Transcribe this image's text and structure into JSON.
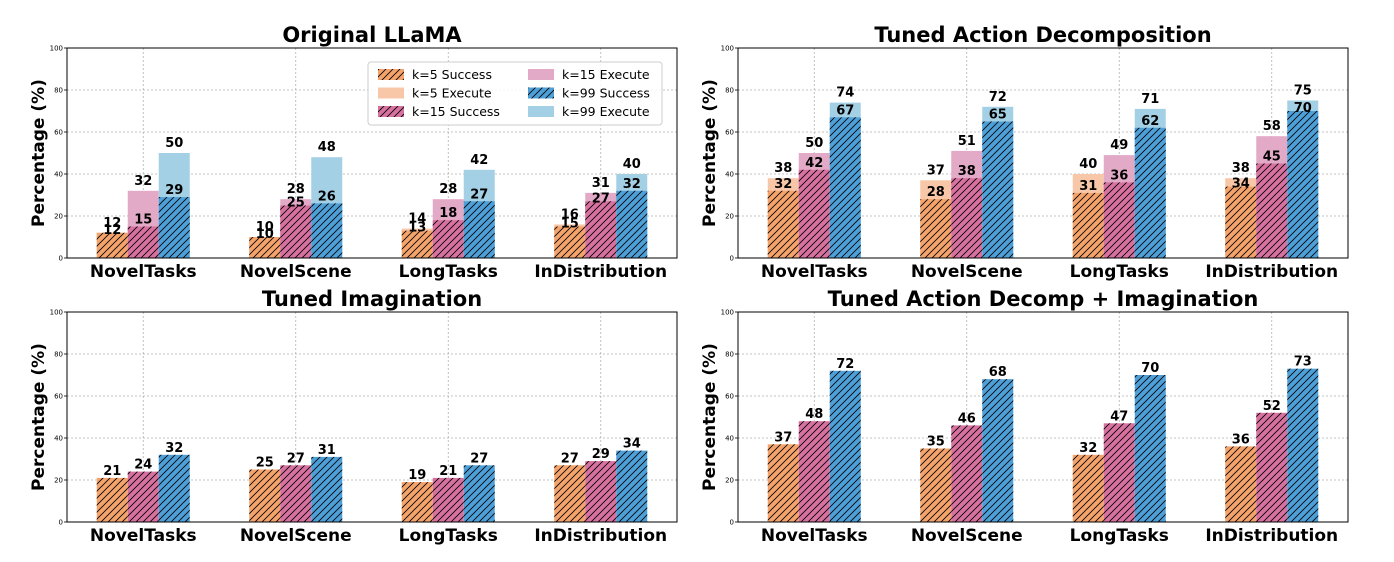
{
  "chart_data": [
    {
      "type": "bar",
      "title": "Original LLaMA",
      "ylabel": "Percentage (%)",
      "ylim": [
        0,
        100
      ],
      "yticks": [
        "0",
        "20",
        "40",
        "60",
        "80",
        "100"
      ],
      "grid": true,
      "legend": "top-right",
      "categories": [
        "NovelTasks",
        "NovelScene",
        "LongTasks",
        "InDistribution"
      ],
      "groups": [
        {
          "name": "k=5",
          "success": [
            12,
            10,
            13,
            15
          ],
          "execute": [
            12,
            10,
            14,
            16
          ]
        },
        {
          "name": "k=15",
          "success": [
            15,
            25,
            18,
            27
          ],
          "execute": [
            32,
            28,
            28,
            31
          ]
        },
        {
          "name": "k=99",
          "success": [
            29,
            26,
            27,
            32
          ],
          "execute": [
            50,
            48,
            42,
            40
          ]
        }
      ]
    },
    {
      "type": "bar",
      "title": "Tuned Action Decomposition",
      "ylabel": "Percentage (%)",
      "ylim": [
        0,
        100
      ],
      "yticks": [
        "0",
        "20",
        "40",
        "60",
        "80",
        "100"
      ],
      "grid": true,
      "categories": [
        "NovelTasks",
        "NovelScene",
        "LongTasks",
        "InDistribution"
      ],
      "groups": [
        {
          "name": "k=5",
          "success": [
            32,
            28,
            31,
            34
          ],
          "execute": [
            38,
            37,
            40,
            38
          ]
        },
        {
          "name": "k=15",
          "success": [
            42,
            38,
            36,
            45
          ],
          "execute": [
            50,
            51,
            49,
            58
          ]
        },
        {
          "name": "k=99",
          "success": [
            67,
            65,
            62,
            70
          ],
          "execute": [
            74,
            72,
            71,
            75
          ]
        }
      ]
    },
    {
      "type": "bar",
      "title": "Tuned Imagination",
      "ylabel": "Percentage (%)",
      "ylim": [
        0,
        100
      ],
      "yticks": [
        "0",
        "20",
        "40",
        "60",
        "80",
        "100"
      ],
      "grid": true,
      "categories": [
        "NovelTasks",
        "NovelScene",
        "LongTasks",
        "InDistribution"
      ],
      "groups": [
        {
          "name": "k=5",
          "success": [
            21,
            25,
            19,
            27
          ]
        },
        {
          "name": "k=15",
          "success": [
            24,
            27,
            21,
            29
          ]
        },
        {
          "name": "k=99",
          "success": [
            32,
            31,
            27,
            34
          ]
        }
      ]
    },
    {
      "type": "bar",
      "title": "Tuned Action Decomp + Imagination",
      "ylabel": "Percentage (%)",
      "ylim": [
        0,
        100
      ],
      "yticks": [
        "0",
        "20",
        "40",
        "60",
        "80",
        "100"
      ],
      "grid": true,
      "categories": [
        "NovelTasks",
        "NovelScene",
        "LongTasks",
        "InDistribution"
      ],
      "groups": [
        {
          "name": "k=5",
          "success": [
            37,
            35,
            32,
            36
          ]
        },
        {
          "name": "k=15",
          "success": [
            48,
            46,
            47,
            52
          ]
        },
        {
          "name": "k=99",
          "success": [
            72,
            68,
            70,
            73
          ]
        }
      ]
    }
  ],
  "legend": {
    "entries": [
      {
        "label": "k=5 Success",
        "color": "#F4A36A",
        "hatch": true
      },
      {
        "label": "k=5 Execute",
        "color": "#F8C7A8",
        "hatch": false
      },
      {
        "label": "k=15 Success",
        "color": "#D7719F",
        "hatch": true
      },
      {
        "label": "k=15 Execute",
        "color": "#E2AAC6",
        "hatch": false
      },
      {
        "label": "k=99 Success",
        "color": "#4D9FD8",
        "hatch": true
      },
      {
        "label": "k=99 Execute",
        "color": "#A3D0E5",
        "hatch": false
      }
    ]
  },
  "colors": {
    "k5_success": "#F4A36A",
    "k5_execute": "#F8C7A8",
    "k15_success": "#D7719F",
    "k15_execute": "#E2AAC6",
    "k99_success": "#4D9FD8",
    "k99_execute": "#A3D0E5"
  }
}
